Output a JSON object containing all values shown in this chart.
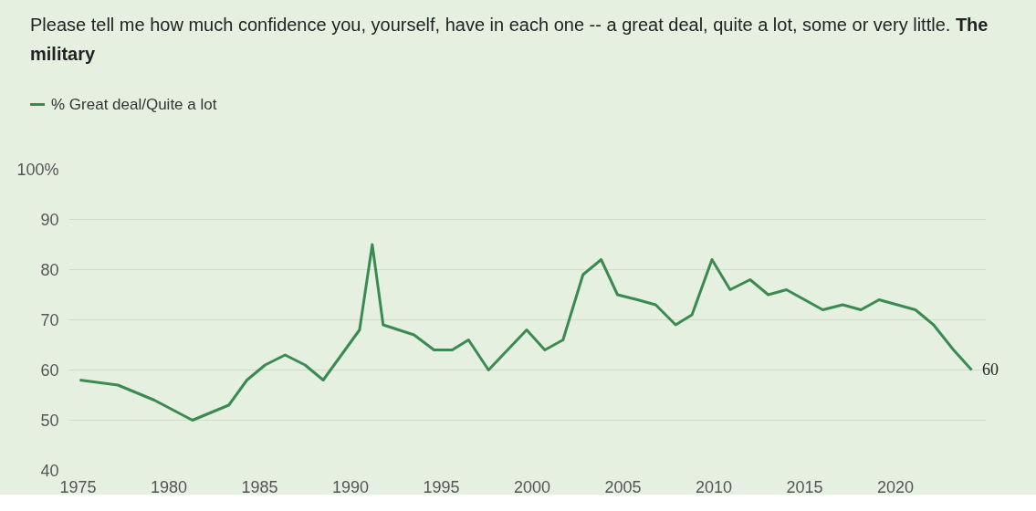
{
  "chart_data": {
    "type": "line",
    "title": "Please tell me how much confidence you, yourself, have in each one -- a great deal, quite a lot, some or very little.",
    "subtitle": "The military",
    "x": [
      1975.1,
      1977.2,
      1979.2,
      1981.3,
      1983.3,
      1984.3,
      1985.3,
      1986.4,
      1987.5,
      1988.5,
      1990.5,
      1991.2,
      1991.8,
      1993.5,
      1994.6,
      1995.6,
      1996.5,
      1997.6,
      1999.7,
      2000.7,
      2001.7,
      2002.8,
      2003.8,
      2004.7,
      2005.8,
      2006.8,
      2007.9,
      2008.8,
      2009.9,
      2010.9,
      2012.0,
      2013.0,
      2014.0,
      2015.0,
      2016.0,
      2017.1,
      2018.1,
      2019.1,
      2020.1,
      2021.1,
      2022.1,
      2023.2,
      2024.2
    ],
    "series": [
      {
        "name": "% Great deal/Quite a lot",
        "color": "#3a8a52",
        "values": [
          58,
          57,
          54,
          50,
          53,
          58,
          61,
          63,
          61,
          58,
          68,
          85,
          69,
          67,
          64,
          64,
          66,
          60,
          68,
          64,
          66,
          79,
          82,
          75,
          74,
          73,
          69,
          71,
          82,
          76,
          78,
          75,
          76,
          74,
          72,
          73,
          72,
          74,
          73,
          72,
          69,
          64,
          60
        ],
        "value_labels": [
          null,
          null,
          null,
          null,
          null,
          null,
          null,
          null,
          null,
          null,
          null,
          null,
          null,
          null,
          null,
          null,
          null,
          null,
          null,
          null,
          null,
          null,
          null,
          null,
          null,
          null,
          null,
          null,
          null,
          null,
          null,
          null,
          null,
          null,
          null,
          null,
          null,
          null,
          null,
          null,
          null,
          null,
          "60"
        ]
      }
    ],
    "xlim": [
      1974.5,
      2025.0
    ],
    "xticks": [
      1975,
      1980,
      1985,
      1990,
      1995,
      2000,
      2005,
      2010,
      2015,
      2020
    ],
    "ylim": [
      40,
      100
    ],
    "yticks": [
      40,
      50,
      60,
      70,
      80,
      90,
      {
        "value": 100,
        "label": "100%"
      }
    ],
    "grid": "y",
    "legend": "top left",
    "line_style": "solid",
    "marker": "none"
  }
}
